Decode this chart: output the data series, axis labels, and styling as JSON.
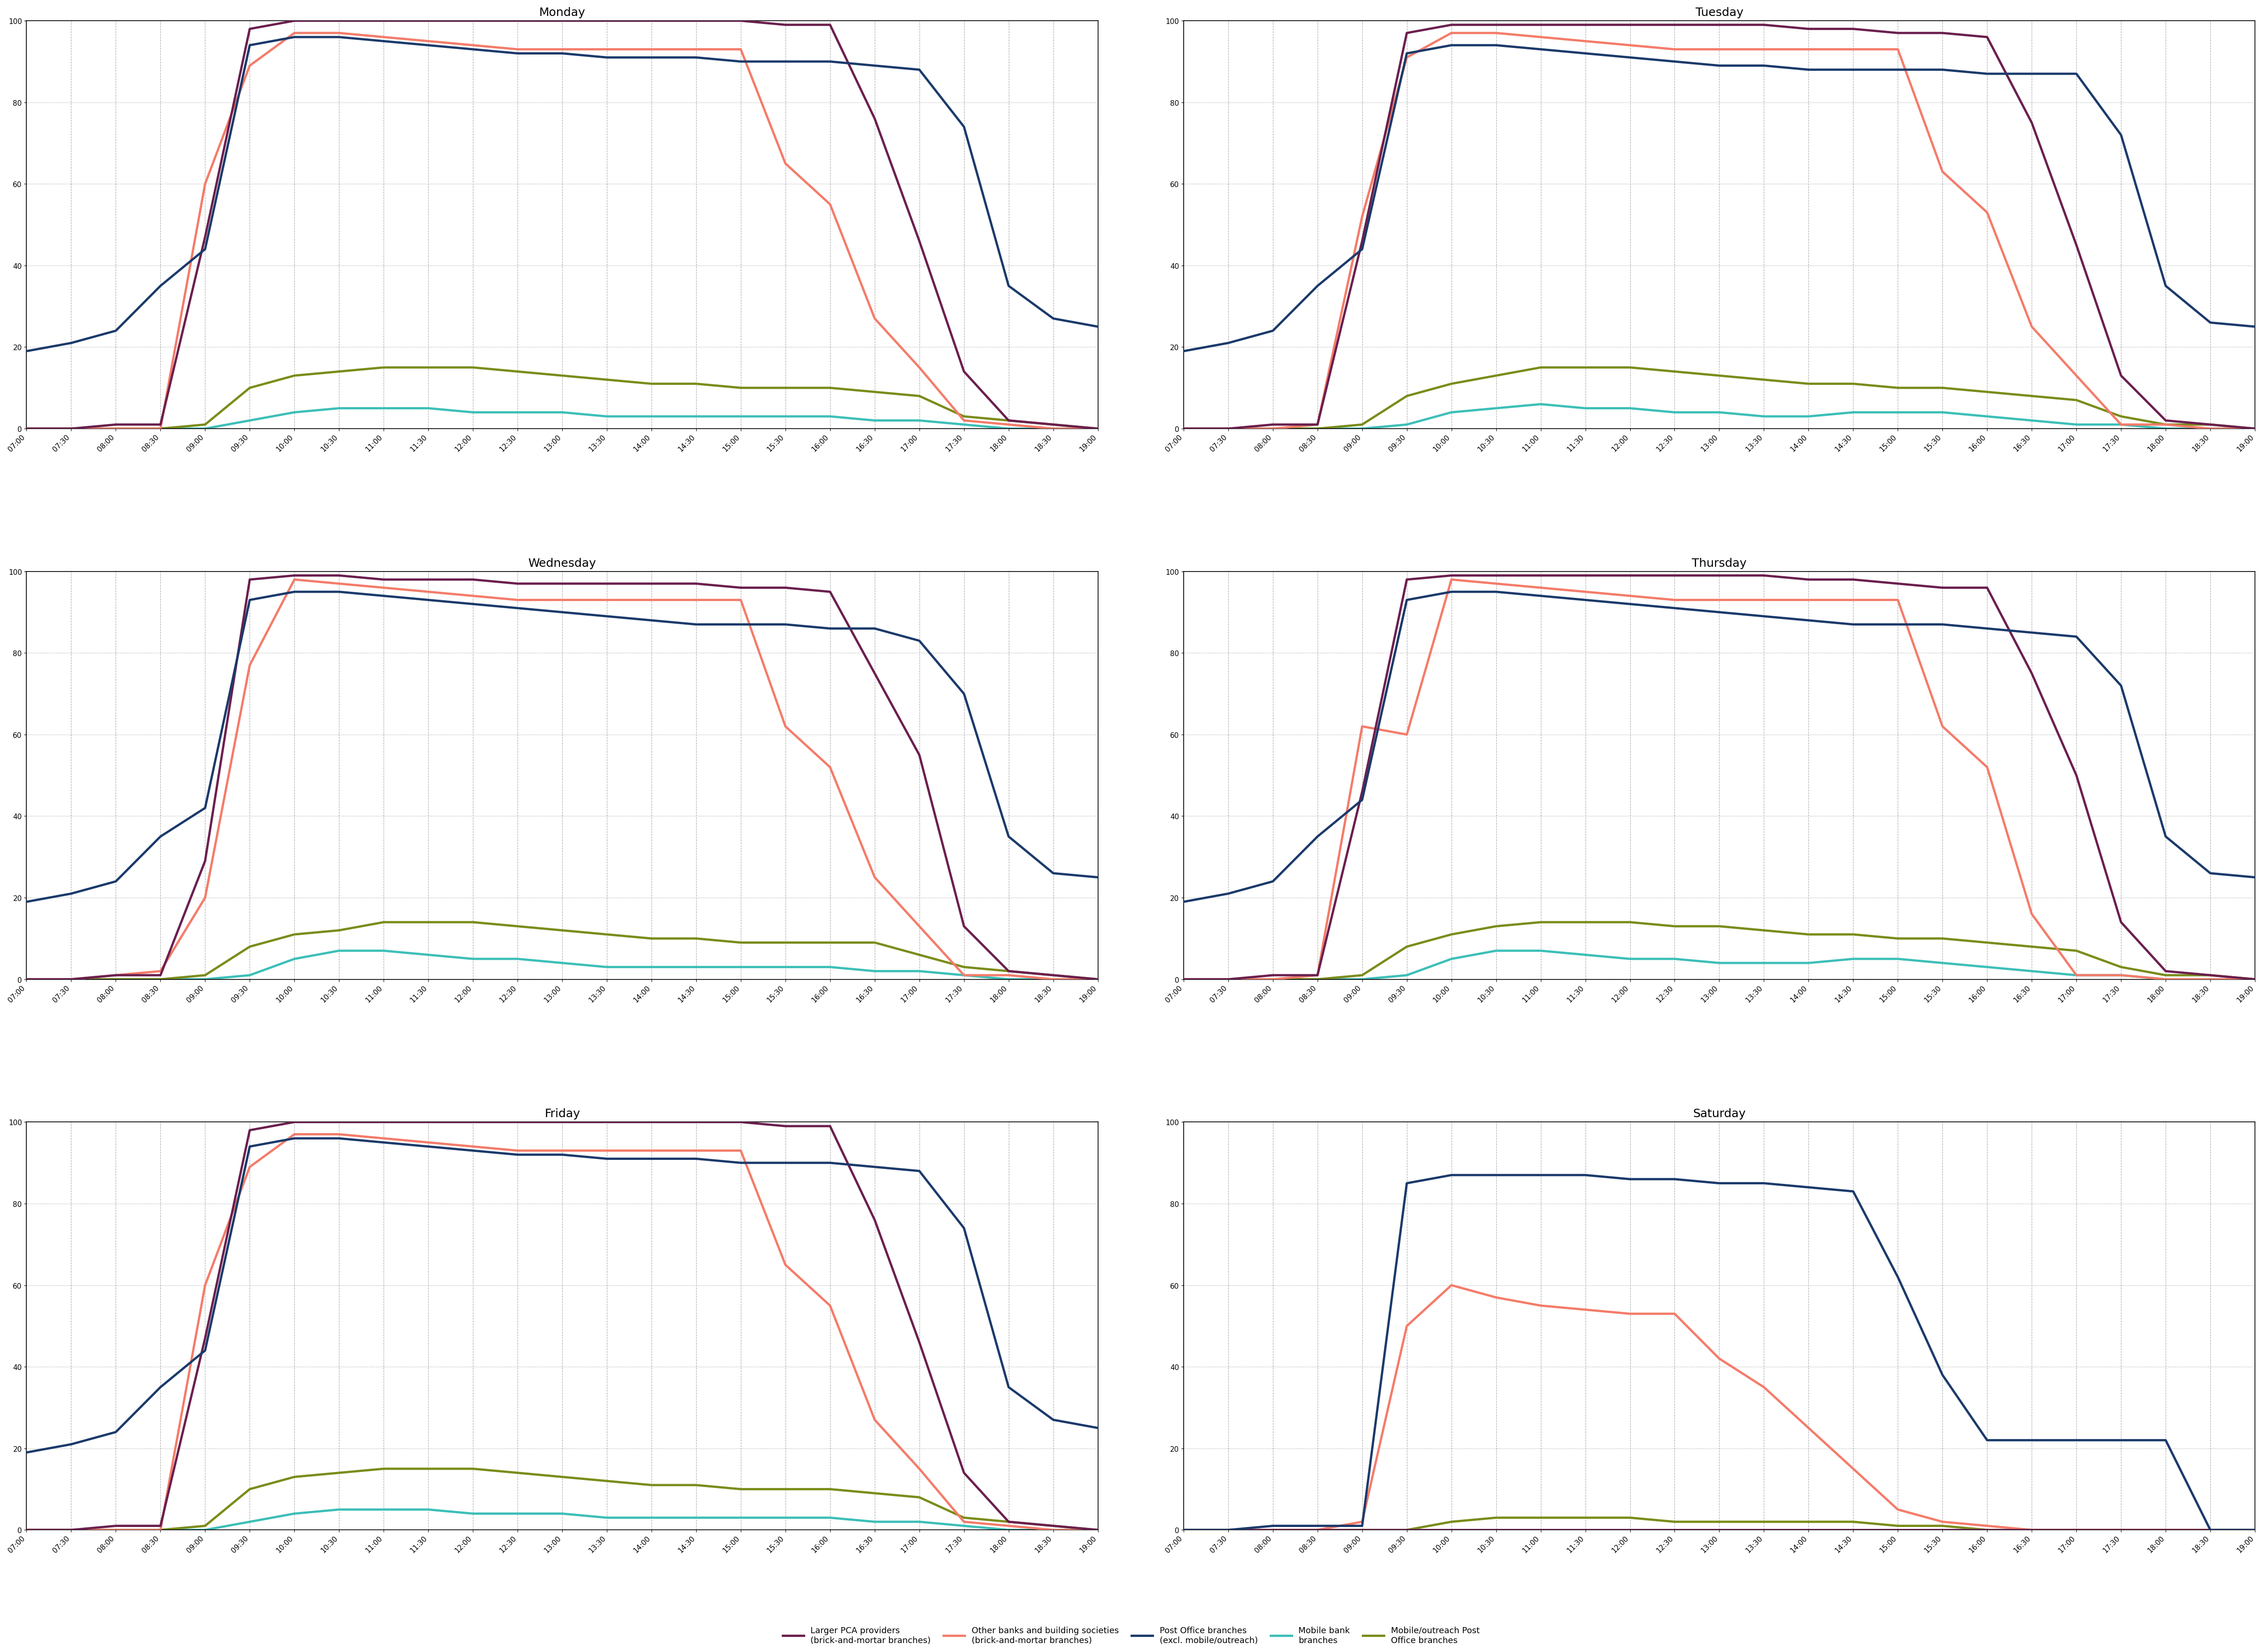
{
  "title_fontsize": 18,
  "tick_fontsize": 11,
  "legend_fontsize": 13,
  "line_width": 3.5,
  "colors": {
    "larger_pca": "#6B1F4E",
    "other_banks": "#F47C6A",
    "post_office": "#1B3A6B",
    "mobile_bank": "#3DBFB8",
    "mobile_post": "#7B8C1A"
  },
  "days": [
    "Monday",
    "Tuesday",
    "Wednesday",
    "Thursday",
    "Friday",
    "Saturday"
  ],
  "time_labels": [
    "07:00",
    "07:30",
    "08:00",
    "08:30",
    "09:00",
    "09:30",
    "10:00",
    "10:30",
    "11:00",
    "11:30",
    "12:00",
    "12:30",
    "13:00",
    "13:30",
    "14:00",
    "14:30",
    "15:00",
    "15:30",
    "16:00",
    "16:30",
    "17:00",
    "17:30",
    "18:00",
    "18:30",
    "19:00"
  ],
  "data": {
    "Monday": {
      "post_office": [
        19,
        21,
        24,
        35,
        44,
        94,
        96,
        96,
        95,
        94,
        93,
        92,
        92,
        91,
        91,
        91,
        90,
        90,
        90,
        89,
        88,
        74,
        35,
        27,
        25
      ],
      "larger_pca": [
        0,
        0,
        1,
        1,
        47,
        98,
        100,
        100,
        100,
        100,
        100,
        100,
        100,
        100,
        100,
        100,
        100,
        99,
        99,
        76,
        46,
        14,
        2,
        1,
        0
      ],
      "other_banks": [
        0,
        0,
        0,
        0,
        60,
        89,
        97,
        97,
        96,
        95,
        94,
        93,
        93,
        93,
        93,
        93,
        93,
        65,
        55,
        27,
        15,
        2,
        1,
        0,
        0
      ],
      "mobile_bank": [
        0,
        0,
        0,
        0,
        0,
        2,
        4,
        5,
        5,
        5,
        4,
        4,
        4,
        3,
        3,
        3,
        3,
        3,
        3,
        2,
        2,
        1,
        0,
        0,
        0
      ],
      "mobile_post": [
        0,
        0,
        0,
        0,
        1,
        10,
        13,
        14,
        15,
        15,
        15,
        14,
        13,
        12,
        11,
        11,
        10,
        10,
        10,
        9,
        8,
        3,
        2,
        1,
        0
      ]
    },
    "Tuesday": {
      "post_office": [
        19,
        21,
        24,
        35,
        44,
        92,
        94,
        94,
        93,
        92,
        91,
        90,
        89,
        89,
        88,
        88,
        88,
        88,
        87,
        87,
        87,
        72,
        35,
        26,
        25
      ],
      "larger_pca": [
        0,
        0,
        1,
        1,
        46,
        97,
        99,
        99,
        99,
        99,
        99,
        99,
        99,
        99,
        98,
        98,
        97,
        97,
        96,
        75,
        45,
        13,
        2,
        1,
        0
      ],
      "other_banks": [
        0,
        0,
        0,
        1,
        52,
        91,
        97,
        97,
        96,
        95,
        94,
        93,
        93,
        93,
        93,
        93,
        93,
        63,
        53,
        25,
        13,
        1,
        1,
        0,
        0
      ],
      "mobile_bank": [
        0,
        0,
        0,
        0,
        0,
        1,
        4,
        5,
        6,
        5,
        5,
        4,
        4,
        3,
        3,
        4,
        4,
        4,
        3,
        2,
        1,
        1,
        0,
        0,
        0
      ],
      "mobile_post": [
        0,
        0,
        0,
        0,
        1,
        8,
        11,
        13,
        15,
        15,
        15,
        14,
        13,
        12,
        11,
        11,
        10,
        10,
        9,
        8,
        7,
        3,
        1,
        1,
        0
      ]
    },
    "Wednesday": {
      "post_office": [
        19,
        21,
        24,
        35,
        42,
        93,
        95,
        95,
        94,
        93,
        92,
        91,
        90,
        89,
        88,
        87,
        87,
        87,
        86,
        86,
        83,
        70,
        35,
        26,
        25
      ],
      "larger_pca": [
        0,
        0,
        1,
        1,
        29,
        98,
        99,
        99,
        98,
        98,
        98,
        97,
        97,
        97,
        97,
        97,
        96,
        96,
        95,
        75,
        55,
        13,
        2,
        1,
        0
      ],
      "other_banks": [
        0,
        0,
        1,
        2,
        20,
        77,
        98,
        97,
        96,
        95,
        94,
        93,
        93,
        93,
        93,
        93,
        93,
        62,
        52,
        25,
        13,
        1,
        1,
        0,
        0
      ],
      "mobile_bank": [
        0,
        0,
        0,
        0,
        0,
        1,
        5,
        7,
        7,
        6,
        5,
        5,
        4,
        3,
        3,
        3,
        3,
        3,
        3,
        2,
        2,
        1,
        0,
        0,
        0
      ],
      "mobile_post": [
        0,
        0,
        0,
        0,
        1,
        8,
        11,
        12,
        14,
        14,
        14,
        13,
        12,
        11,
        10,
        10,
        9,
        9,
        9,
        9,
        6,
        3,
        2,
        1,
        0
      ]
    },
    "Thursday": {
      "post_office": [
        19,
        21,
        24,
        35,
        44,
        93,
        95,
        95,
        94,
        93,
        92,
        91,
        90,
        89,
        88,
        87,
        87,
        87,
        86,
        85,
        84,
        72,
        35,
        26,
        25
      ],
      "larger_pca": [
        0,
        0,
        1,
        1,
        46,
        98,
        99,
        99,
        99,
        99,
        99,
        99,
        99,
        99,
        98,
        98,
        97,
        96,
        96,
        75,
        50,
        14,
        2,
        1,
        0
      ],
      "other_banks": [
        0,
        0,
        0,
        1,
        62,
        60,
        98,
        97,
        96,
        95,
        94,
        93,
        93,
        93,
        93,
        93,
        93,
        62,
        52,
        16,
        1,
        1,
        0,
        0,
        0
      ],
      "mobile_bank": [
        0,
        0,
        0,
        0,
        0,
        1,
        5,
        7,
        7,
        6,
        5,
        5,
        4,
        4,
        4,
        5,
        5,
        4,
        3,
        2,
        1,
        1,
        0,
        0,
        0
      ],
      "mobile_post": [
        0,
        0,
        0,
        0,
        1,
        8,
        11,
        13,
        14,
        14,
        14,
        13,
        13,
        12,
        11,
        11,
        10,
        10,
        9,
        8,
        7,
        3,
        1,
        1,
        0
      ]
    },
    "Friday": {
      "post_office": [
        19,
        21,
        24,
        35,
        44,
        94,
        96,
        96,
        95,
        94,
        93,
        92,
        92,
        91,
        91,
        91,
        90,
        90,
        90,
        89,
        88,
        74,
        35,
        27,
        25
      ],
      "larger_pca": [
        0,
        0,
        1,
        1,
        47,
        98,
        100,
        100,
        100,
        100,
        100,
        100,
        100,
        100,
        100,
        100,
        100,
        99,
        99,
        76,
        46,
        14,
        2,
        1,
        0
      ],
      "other_banks": [
        0,
        0,
        0,
        0,
        60,
        89,
        97,
        97,
        96,
        95,
        94,
        93,
        93,
        93,
        93,
        93,
        93,
        65,
        55,
        27,
        15,
        2,
        1,
        0,
        0
      ],
      "mobile_bank": [
        0,
        0,
        0,
        0,
        0,
        2,
        4,
        5,
        5,
        5,
        4,
        4,
        4,
        3,
        3,
        3,
        3,
        3,
        3,
        2,
        2,
        1,
        0,
        0,
        0
      ],
      "mobile_post": [
        0,
        0,
        0,
        0,
        1,
        10,
        13,
        14,
        15,
        15,
        15,
        14,
        13,
        12,
        11,
        11,
        10,
        10,
        10,
        9,
        8,
        3,
        2,
        1,
        0
      ]
    },
    "Saturday": {
      "post_office": [
        0,
        0,
        1,
        1,
        1,
        85,
        87,
        87,
        87,
        87,
        86,
        86,
        85,
        85,
        84,
        83,
        62,
        38,
        22,
        22,
        22,
        22,
        22,
        0,
        0
      ],
      "larger_pca": [
        0,
        0,
        0,
        0,
        0,
        0,
        0,
        0,
        0,
        0,
        0,
        0,
        0,
        0,
        0,
        0,
        0,
        0,
        0,
        0,
        0,
        0,
        0,
        0,
        0
      ],
      "other_banks": [
        0,
        0,
        0,
        0,
        2,
        50,
        60,
        57,
        55,
        54,
        53,
        53,
        42,
        35,
        25,
        15,
        5,
        2,
        1,
        0,
        0,
        0,
        0,
        0,
        0
      ],
      "mobile_bank": [
        0,
        0,
        0,
        0,
        0,
        0,
        0,
        0,
        0,
        0,
        0,
        0,
        0,
        0,
        0,
        0,
        0,
        0,
        0,
        0,
        0,
        0,
        0,
        0,
        0
      ],
      "mobile_post": [
        0,
        0,
        0,
        0,
        0,
        0,
        2,
        3,
        3,
        3,
        3,
        2,
        2,
        2,
        2,
        2,
        1,
        1,
        0,
        0,
        0,
        0,
        0,
        0,
        0
      ]
    }
  },
  "legend_entries": [
    [
      "Larger PCA providers\n(brick-and-mortar branches)",
      "larger_pca"
    ],
    [
      "Other banks and building societies\n(brick-and-mortar branches)",
      "other_banks"
    ],
    [
      "Post Office branches\n(excl. mobile/outreach)",
      "post_office"
    ],
    [
      "Mobile bank\nbranches",
      "mobile_bank"
    ],
    [
      "Mobile/outreach Post\nOffice branches",
      "mobile_post"
    ]
  ]
}
